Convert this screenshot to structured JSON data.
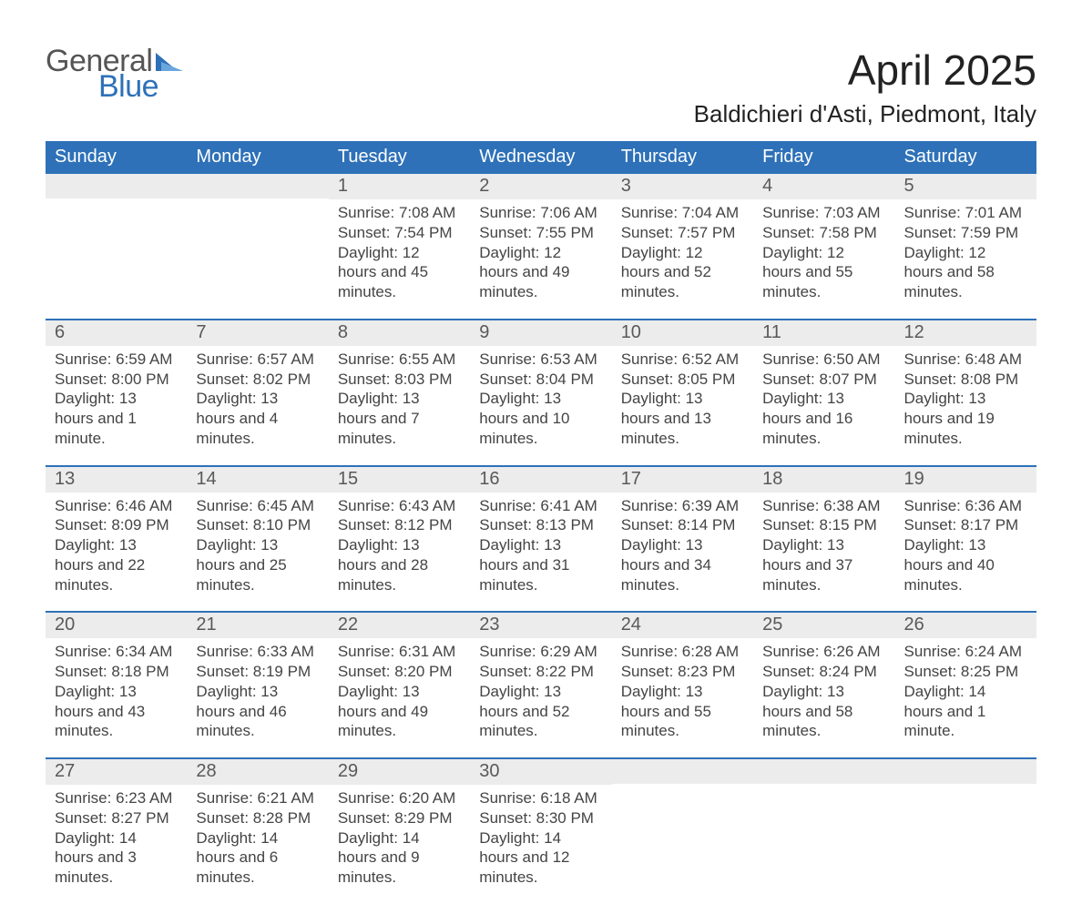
{
  "brand": {
    "word1": "General",
    "word2": "Blue",
    "accent_color": "#2e71b8",
    "text_gray": "#555555"
  },
  "title": "April 2025",
  "location": "Baldichieri d'Asti, Piedmont, Italy",
  "header_bg": "#2e71b8",
  "header_fg": "#ffffff",
  "band_bg": "#ececec",
  "band_fg": "#595959",
  "body_fg": "#444444",
  "week_border": "#2e71b8",
  "page_bg": "#ffffff",
  "title_fontsize": 46,
  "location_fontsize": 26,
  "header_fontsize": 20,
  "daynum_fontsize": 20,
  "body_fontsize": 17,
  "dayHeaders": [
    "Sunday",
    "Monday",
    "Tuesday",
    "Wednesday",
    "Thursday",
    "Friday",
    "Saturday"
  ],
  "weeks": [
    [
      {
        "n": "",
        "sr": "",
        "ss": "",
        "dl": ""
      },
      {
        "n": "",
        "sr": "",
        "ss": "",
        "dl": ""
      },
      {
        "n": "1",
        "sr": "7:08 AM",
        "ss": "7:54 PM",
        "dl": "12 hours and 45 minutes."
      },
      {
        "n": "2",
        "sr": "7:06 AM",
        "ss": "7:55 PM",
        "dl": "12 hours and 49 minutes."
      },
      {
        "n": "3",
        "sr": "7:04 AM",
        "ss": "7:57 PM",
        "dl": "12 hours and 52 minutes."
      },
      {
        "n": "4",
        "sr": "7:03 AM",
        "ss": "7:58 PM",
        "dl": "12 hours and 55 minutes."
      },
      {
        "n": "5",
        "sr": "7:01 AM",
        "ss": "7:59 PM",
        "dl": "12 hours and 58 minutes."
      }
    ],
    [
      {
        "n": "6",
        "sr": "6:59 AM",
        "ss": "8:00 PM",
        "dl": "13 hours and 1 minute."
      },
      {
        "n": "7",
        "sr": "6:57 AM",
        "ss": "8:02 PM",
        "dl": "13 hours and 4 minutes."
      },
      {
        "n": "8",
        "sr": "6:55 AM",
        "ss": "8:03 PM",
        "dl": "13 hours and 7 minutes."
      },
      {
        "n": "9",
        "sr": "6:53 AM",
        "ss": "8:04 PM",
        "dl": "13 hours and 10 minutes."
      },
      {
        "n": "10",
        "sr": "6:52 AM",
        "ss": "8:05 PM",
        "dl": "13 hours and 13 minutes."
      },
      {
        "n": "11",
        "sr": "6:50 AM",
        "ss": "8:07 PM",
        "dl": "13 hours and 16 minutes."
      },
      {
        "n": "12",
        "sr": "6:48 AM",
        "ss": "8:08 PM",
        "dl": "13 hours and 19 minutes."
      }
    ],
    [
      {
        "n": "13",
        "sr": "6:46 AM",
        "ss": "8:09 PM",
        "dl": "13 hours and 22 minutes."
      },
      {
        "n": "14",
        "sr": "6:45 AM",
        "ss": "8:10 PM",
        "dl": "13 hours and 25 minutes."
      },
      {
        "n": "15",
        "sr": "6:43 AM",
        "ss": "8:12 PM",
        "dl": "13 hours and 28 minutes."
      },
      {
        "n": "16",
        "sr": "6:41 AM",
        "ss": "8:13 PM",
        "dl": "13 hours and 31 minutes."
      },
      {
        "n": "17",
        "sr": "6:39 AM",
        "ss": "8:14 PM",
        "dl": "13 hours and 34 minutes."
      },
      {
        "n": "18",
        "sr": "6:38 AM",
        "ss": "8:15 PM",
        "dl": "13 hours and 37 minutes."
      },
      {
        "n": "19",
        "sr": "6:36 AM",
        "ss": "8:17 PM",
        "dl": "13 hours and 40 minutes."
      }
    ],
    [
      {
        "n": "20",
        "sr": "6:34 AM",
        "ss": "8:18 PM",
        "dl": "13 hours and 43 minutes."
      },
      {
        "n": "21",
        "sr": "6:33 AM",
        "ss": "8:19 PM",
        "dl": "13 hours and 46 minutes."
      },
      {
        "n": "22",
        "sr": "6:31 AM",
        "ss": "8:20 PM",
        "dl": "13 hours and 49 minutes."
      },
      {
        "n": "23",
        "sr": "6:29 AM",
        "ss": "8:22 PM",
        "dl": "13 hours and 52 minutes."
      },
      {
        "n": "24",
        "sr": "6:28 AM",
        "ss": "8:23 PM",
        "dl": "13 hours and 55 minutes."
      },
      {
        "n": "25",
        "sr": "6:26 AM",
        "ss": "8:24 PM",
        "dl": "13 hours and 58 minutes."
      },
      {
        "n": "26",
        "sr": "6:24 AM",
        "ss": "8:25 PM",
        "dl": "14 hours and 1 minute."
      }
    ],
    [
      {
        "n": "27",
        "sr": "6:23 AM",
        "ss": "8:27 PM",
        "dl": "14 hours and 3 minutes."
      },
      {
        "n": "28",
        "sr": "6:21 AM",
        "ss": "8:28 PM",
        "dl": "14 hours and 6 minutes."
      },
      {
        "n": "29",
        "sr": "6:20 AM",
        "ss": "8:29 PM",
        "dl": "14 hours and 9 minutes."
      },
      {
        "n": "30",
        "sr": "6:18 AM",
        "ss": "8:30 PM",
        "dl": "14 hours and 12 minutes."
      },
      {
        "n": "",
        "sr": "",
        "ss": "",
        "dl": ""
      },
      {
        "n": "",
        "sr": "",
        "ss": "",
        "dl": ""
      },
      {
        "n": "",
        "sr": "",
        "ss": "",
        "dl": ""
      }
    ]
  ],
  "labels": {
    "sunrise": "Sunrise: ",
    "sunset": "Sunset: ",
    "daylight": "Daylight: "
  }
}
